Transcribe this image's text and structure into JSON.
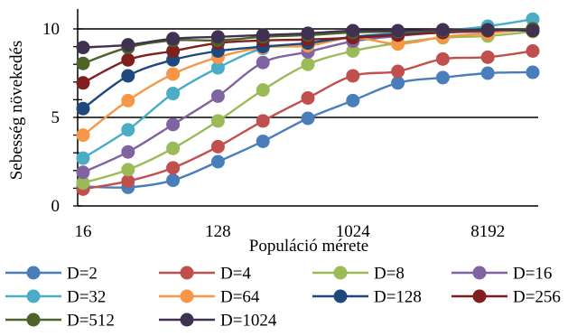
{
  "chart_data": {
    "type": "line",
    "title": "",
    "xlabel": "Populáció mérete",
    "ylabel": "Sebesség növekedés",
    "x": [
      16,
      32,
      64,
      128,
      256,
      512,
      1024,
      2048,
      4096,
      8192,
      16384
    ],
    "x_scale": "log2",
    "x_tick_labels": [
      "16",
      "128",
      "1024",
      "8192"
    ],
    "x_tick_values": [
      16,
      128,
      1024,
      8192
    ],
    "ylim": [
      0,
      10.8
    ],
    "y_ticks": [
      0,
      5,
      10
    ],
    "y_tick_labels": [
      "0",
      "5",
      "10"
    ],
    "grid": "horizontal at 5 and 10",
    "legend_position": "bottom",
    "series": [
      {
        "name": "D=2",
        "color": "#4a7ebb",
        "values": [
          1.1,
          1.05,
          1.45,
          2.5,
          3.65,
          4.95,
          5.95,
          6.95,
          7.25,
          7.5,
          7.55
        ]
      },
      {
        "name": "D=4",
        "color": "#c0504d",
        "values": [
          0.95,
          1.4,
          2.15,
          3.35,
          4.8,
          6.1,
          7.35,
          7.6,
          8.3,
          8.4,
          8.75
        ]
      },
      {
        "name": "D=8",
        "color": "#9bbb59",
        "values": [
          1.3,
          2.05,
          3.25,
          4.8,
          6.55,
          8.0,
          8.75,
          9.2,
          9.5,
          9.6,
          9.85
        ]
      },
      {
        "name": "D=16",
        "color": "#8064a2",
        "values": [
          1.9,
          3.05,
          4.6,
          6.2,
          8.1,
          8.7,
          9.3,
          9.6,
          9.8,
          9.85,
          10.0
        ]
      },
      {
        "name": "D=32",
        "color": "#4bacc6",
        "values": [
          2.7,
          4.3,
          6.35,
          7.8,
          8.9,
          9.15,
          9.55,
          9.75,
          9.9,
          10.15,
          10.55
        ]
      },
      {
        "name": "D=64",
        "color": "#f79646",
        "values": [
          4.0,
          5.95,
          7.45,
          8.4,
          8.95,
          9.05,
          9.5,
          9.15,
          9.55,
          9.75,
          10.0
        ]
      },
      {
        "name": "D=128",
        "color": "#1f497d",
        "values": [
          5.5,
          7.35,
          8.25,
          8.75,
          9.0,
          9.2,
          9.55,
          9.7,
          9.8,
          9.95,
          10.0
        ]
      },
      {
        "name": "D=256",
        "color": "#7f1f1f",
        "values": [
          6.95,
          8.25,
          8.75,
          9.2,
          9.35,
          9.4,
          9.5,
          9.65,
          9.8,
          9.9,
          10.0
        ]
      },
      {
        "name": "D=512",
        "color": "#4f6228",
        "values": [
          8.05,
          8.95,
          9.35,
          9.35,
          9.55,
          9.65,
          9.8,
          9.85,
          9.9,
          9.95,
          10.0
        ]
      },
      {
        "name": "D=1024",
        "color": "#403152",
        "values": [
          8.95,
          9.1,
          9.45,
          9.55,
          9.65,
          9.75,
          9.9,
          9.9,
          9.95,
          9.95,
          9.9
        ]
      }
    ]
  }
}
